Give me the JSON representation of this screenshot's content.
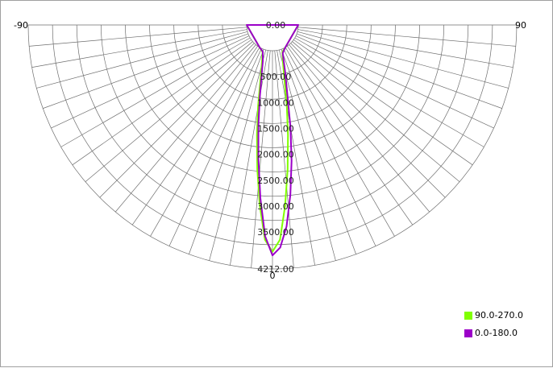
{
  "chart_data": {
    "type": "polar",
    "angle_ticks": {
      "left": "-90",
      "right": "90",
      "bottom": "0"
    },
    "radial_max": 4212.0,
    "radial_labels": [
      "0.00",
      "500.00",
      "1000.00",
      "1500.00",
      "2000.00",
      "2500.00",
      "3000.00",
      "3500.00",
      "4212.00"
    ],
    "series": [
      {
        "name": "90.0-270.0",
        "color": "#80ff00",
        "angles": [
          -90,
          -30,
          -20,
          -15,
          -10,
          -8,
          -6,
          -4,
          -2,
          0,
          2,
          4,
          6,
          8,
          10,
          15,
          20,
          30,
          90
        ],
        "values": [
          0,
          0,
          60,
          300,
          1100,
          1650,
          2300,
          3000,
          3650,
          3880,
          3650,
          3000,
          2300,
          1650,
          1100,
          300,
          60,
          0,
          0
        ]
      },
      {
        "name": "0.0-180.0",
        "color": "#9b00c8",
        "angles": [
          -90,
          -30,
          -20,
          -15,
          -10,
          -8,
          -6,
          -4,
          -2,
          0,
          2,
          4,
          6,
          8,
          10,
          15,
          20,
          30,
          90
        ],
        "values": [
          0,
          0,
          50,
          220,
          900,
          1450,
          2100,
          2850,
          3580,
          3950,
          3800,
          3400,
          2800,
          2150,
          1500,
          450,
          80,
          0,
          0
        ]
      }
    ]
  }
}
